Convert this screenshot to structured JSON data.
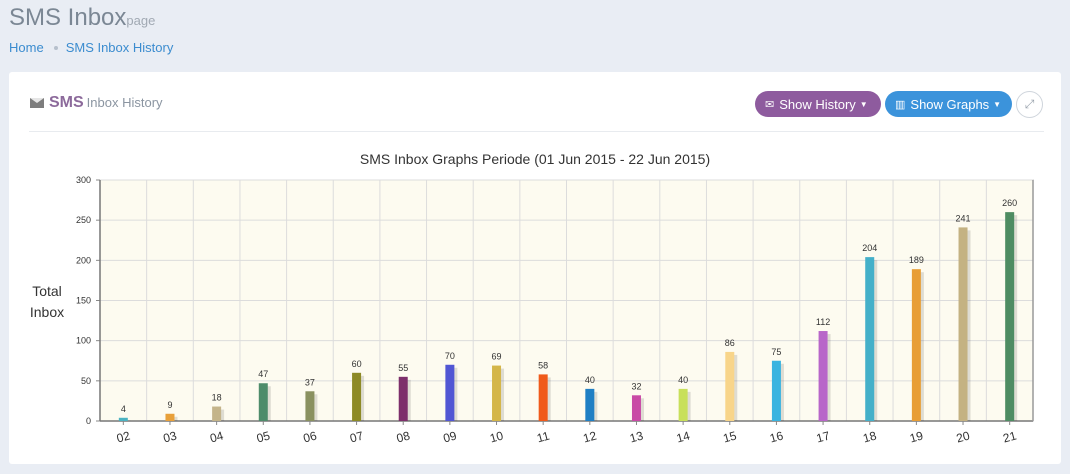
{
  "header": {
    "title": "SMS Inbox",
    "subtitle": "page"
  },
  "breadcrumb": {
    "home": "Home",
    "current": "SMS Inbox History"
  },
  "panel": {
    "title_strong": "SMS",
    "title_light": "Inbox History",
    "icon": "envelope-icon",
    "buttons": {
      "history": "Show History",
      "graphs": "Show Graphs"
    },
    "colors": {
      "history": "#8e5b9e",
      "graphs": "#3b93db"
    }
  },
  "chart_data": {
    "type": "bar",
    "title": "SMS Inbox Graphs Periode (01 Jun 2015 - 22 Jun 2015)",
    "xlabel": "",
    "ylabel": "Total Inbox",
    "ylim": [
      0,
      300
    ],
    "yticks": [
      "0",
      "50",
      "100",
      "150",
      "200",
      "250",
      "300"
    ],
    "categories": [
      "02",
      "03",
      "04",
      "05",
      "06",
      "07",
      "08",
      "09",
      "10",
      "11",
      "12",
      "13",
      "14",
      "15",
      "16",
      "17",
      "18",
      "19",
      "20",
      "21"
    ],
    "values": [
      4,
      9,
      18,
      47,
      37,
      60,
      55,
      70,
      69,
      58,
      40,
      32,
      40,
      86,
      75,
      112,
      204,
      189,
      241,
      260
    ],
    "colors": [
      "#4bb3c2",
      "#e8a03a",
      "#c4b48a",
      "#4e8c6b",
      "#8a9160",
      "#8d8a26",
      "#7d2f6b",
      "#5156d4",
      "#d4b64a",
      "#f05a1a",
      "#1f7fc4",
      "#c94aa6",
      "#c8e05a",
      "#f8d58a",
      "#3ab4e0",
      "#b866c9",
      "#44b0c9",
      "#e89e36",
      "#c4b282",
      "#4e8c62"
    ],
    "grid": true,
    "legend": "none",
    "background": "#fdfbf0"
  }
}
